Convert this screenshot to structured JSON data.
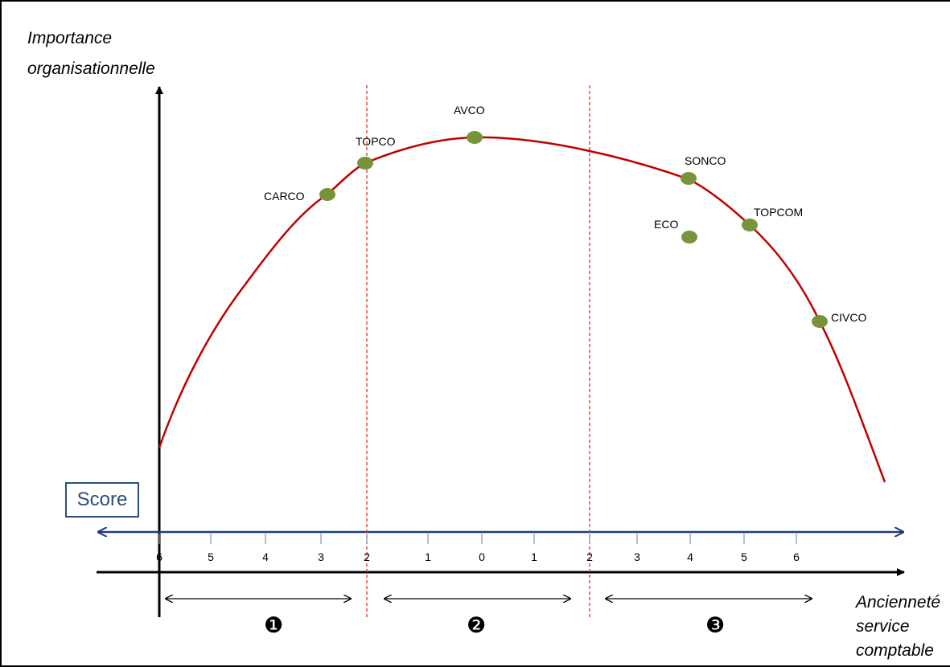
{
  "y_axis_label": [
    "Importance",
    "organisationnelle"
  ],
  "x_axis_label": [
    "Ancienneté",
    "service",
    "comptable"
  ],
  "score_label": "Score",
  "score_ticks": [
    "6",
    "5",
    "4",
    "3",
    "2",
    "1",
    "0",
    "1",
    "2",
    "3",
    "4",
    "5",
    "6"
  ],
  "zones": [
    "❶",
    "❷",
    "❸"
  ],
  "points": [
    {
      "name": "CARCO",
      "on_curve": true
    },
    {
      "name": "TOPCO",
      "on_curve": true
    },
    {
      "name": "AVCO",
      "on_curve": true
    },
    {
      "name": "SONCO",
      "on_curve": true
    },
    {
      "name": "ECO",
      "on_curve": false
    },
    {
      "name": "TOPCOM",
      "on_curve": true
    },
    {
      "name": "CIVCO",
      "on_curve": true
    }
  ],
  "colors": {
    "curve": "#c00000",
    "point": "#77933c",
    "score_axis": "#1f3d7a",
    "divider": "#e03030"
  }
}
